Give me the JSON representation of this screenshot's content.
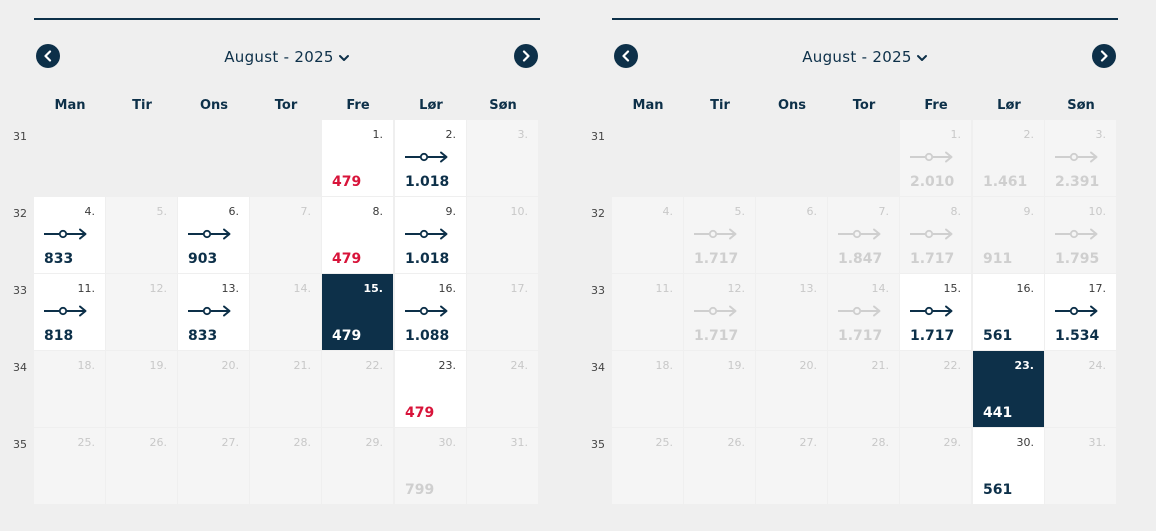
{
  "calendars": [
    {
      "month_label": "August - 2025",
      "weekdays": [
        "Man",
        "Tir",
        "Ons",
        "Tor",
        "Fre",
        "Lør",
        "Søn"
      ],
      "weeks": [
        {
          "num": "31",
          "days": [
            null,
            null,
            null,
            null,
            {
              "d": "1.",
              "state": "active",
              "price": "479",
              "red": true,
              "route": false
            },
            {
              "d": "2.",
              "state": "active",
              "price": "1.018",
              "route": true
            },
            {
              "d": "3.",
              "state": "empty"
            }
          ]
        },
        {
          "num": "32",
          "days": [
            {
              "d": "4.",
              "state": "active",
              "price": "833",
              "route": true
            },
            {
              "d": "5.",
              "state": "empty"
            },
            {
              "d": "6.",
              "state": "active",
              "price": "903",
              "route": true
            },
            {
              "d": "7.",
              "state": "empty"
            },
            {
              "d": "8.",
              "state": "active",
              "price": "479",
              "red": true,
              "route": false
            },
            {
              "d": "9.",
              "state": "active",
              "price": "1.018",
              "route": true
            },
            {
              "d": "10.",
              "state": "empty"
            }
          ]
        },
        {
          "num": "33",
          "days": [
            {
              "d": "11.",
              "state": "active",
              "price": "818",
              "route": true
            },
            {
              "d": "12.",
              "state": "empty"
            },
            {
              "d": "13.",
              "state": "active",
              "price": "833",
              "route": true
            },
            {
              "d": "14.",
              "state": "empty"
            },
            {
              "d": "15.",
              "state": "selected",
              "price": "479",
              "route": false
            },
            {
              "d": "16.",
              "state": "active",
              "price": "1.088",
              "route": true
            },
            {
              "d": "17.",
              "state": "empty"
            }
          ]
        },
        {
          "num": "34",
          "days": [
            {
              "d": "18.",
              "state": "empty"
            },
            {
              "d": "19.",
              "state": "empty"
            },
            {
              "d": "20.",
              "state": "empty"
            },
            {
              "d": "21.",
              "state": "empty"
            },
            {
              "d": "22.",
              "state": "empty"
            },
            {
              "d": "23.",
              "state": "active",
              "price": "479",
              "red": true,
              "route": false
            },
            {
              "d": "24.",
              "state": "empty"
            }
          ]
        },
        {
          "num": "35",
          "days": [
            {
              "d": "25.",
              "state": "empty"
            },
            {
              "d": "26.",
              "state": "empty"
            },
            {
              "d": "27.",
              "state": "empty"
            },
            {
              "d": "28.",
              "state": "empty"
            },
            {
              "d": "29.",
              "state": "empty"
            },
            {
              "d": "30.",
              "state": "faded",
              "price": "799",
              "route": false
            },
            {
              "d": "31.",
              "state": "empty"
            }
          ]
        }
      ]
    },
    {
      "month_label": "August - 2025",
      "weekdays": [
        "Man",
        "Tir",
        "Ons",
        "Tor",
        "Fre",
        "Lør",
        "Søn"
      ],
      "weeks": [
        {
          "num": "31",
          "days": [
            null,
            null,
            null,
            null,
            {
              "d": "1.",
              "state": "faded",
              "price": "2.010",
              "route": true
            },
            {
              "d": "2.",
              "state": "faded",
              "price": "1.461",
              "route": false
            },
            {
              "d": "3.",
              "state": "faded",
              "price": "2.391",
              "route": true
            }
          ]
        },
        {
          "num": "32",
          "days": [
            {
              "d": "4.",
              "state": "empty"
            },
            {
              "d": "5.",
              "state": "faded",
              "price": "1.717",
              "route": true
            },
            {
              "d": "6.",
              "state": "empty"
            },
            {
              "d": "7.",
              "state": "faded",
              "price": "1.847",
              "route": true
            },
            {
              "d": "8.",
              "state": "faded",
              "price": "1.717",
              "route": true
            },
            {
              "d": "9.",
              "state": "faded",
              "price": "911",
              "route": false
            },
            {
              "d": "10.",
              "state": "faded",
              "price": "1.795",
              "route": true
            }
          ]
        },
        {
          "num": "33",
          "days": [
            {
              "d": "11.",
              "state": "empty"
            },
            {
              "d": "12.",
              "state": "faded",
              "price": "1.717",
              "route": true
            },
            {
              "d": "13.",
              "state": "empty"
            },
            {
              "d": "14.",
              "state": "faded",
              "price": "1.717",
              "route": true
            },
            {
              "d": "15.",
              "state": "active",
              "price": "1.717",
              "route": true
            },
            {
              "d": "16.",
              "state": "active",
              "price": "561",
              "route": false
            },
            {
              "d": "17.",
              "state": "active",
              "price": "1.534",
              "route": true
            }
          ]
        },
        {
          "num": "34",
          "days": [
            {
              "d": "18.",
              "state": "empty"
            },
            {
              "d": "19.",
              "state": "empty"
            },
            {
              "d": "20.",
              "state": "empty"
            },
            {
              "d": "21.",
              "state": "empty"
            },
            {
              "d": "22.",
              "state": "empty"
            },
            {
              "d": "23.",
              "state": "selected",
              "price": "441",
              "route": false
            },
            {
              "d": "24.",
              "state": "empty"
            }
          ]
        },
        {
          "num": "35",
          "days": [
            {
              "d": "25.",
              "state": "empty"
            },
            {
              "d": "26.",
              "state": "empty"
            },
            {
              "d": "27.",
              "state": "empty"
            },
            {
              "d": "28.",
              "state": "empty"
            },
            {
              "d": "29.",
              "state": "empty"
            },
            {
              "d": "30.",
              "state": "active",
              "price": "561",
              "route": false
            },
            {
              "d": "31.",
              "state": "empty"
            }
          ]
        }
      ]
    }
  ],
  "icons": {
    "prev": "chevron-left-icon",
    "next": "chevron-right-icon",
    "dropdown": "chevron-down-icon",
    "route": "connecting-route-icon"
  },
  "colors": {
    "navy": "#0d3049",
    "red": "#d8143a",
    "faded": "#cfcfcf"
  }
}
